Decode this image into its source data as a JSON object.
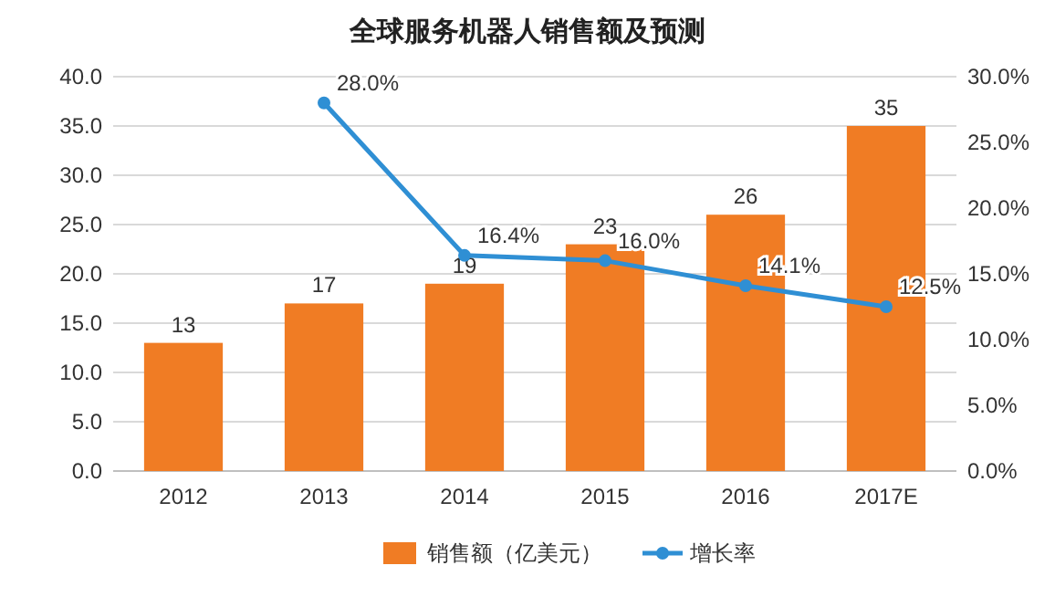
{
  "chart_data": {
    "type": "bar",
    "title": "全球服务机器人销售额及预测",
    "categories": [
      "2012",
      "2013",
      "2014",
      "2015",
      "2016",
      "2017E"
    ],
    "series": [
      {
        "name": "销售额（亿美元）",
        "color": "#f07c24",
        "values": [
          13,
          17,
          19,
          23,
          26,
          35
        ],
        "value_labels": [
          "13",
          "17",
          "19",
          "23",
          "26",
          "35"
        ]
      },
      {
        "name": "增长率",
        "type": "line",
        "axis": "y2",
        "color": "#2f8fd4",
        "marker": "circle",
        "values": [
          null,
          28.0,
          16.4,
          16.0,
          14.1,
          12.5
        ],
        "value_labels": [
          null,
          "28.0%",
          "16.4%",
          "16.0%",
          "14.1%",
          "12.5%"
        ]
      }
    ],
    "ylim": [
      0,
      40
    ],
    "yticks": [
      {
        "value": 0,
        "label": "0.0"
      },
      {
        "value": 5,
        "label": "5.0"
      },
      {
        "value": 10,
        "label": "10.0"
      },
      {
        "value": 15,
        "label": "15.0"
      },
      {
        "value": 20,
        "label": "20.0"
      },
      {
        "value": 25,
        "label": "25.0"
      },
      {
        "value": 30,
        "label": "30.0"
      },
      {
        "value": 35,
        "label": "35.0"
      },
      {
        "value": 40,
        "label": "40.0"
      }
    ],
    "y2lim": [
      0,
      30
    ],
    "y2ticks": [
      {
        "value": 0,
        "label": "0.0%"
      },
      {
        "value": 5,
        "label": "5.0%"
      },
      {
        "value": 10,
        "label": "10.0%"
      },
      {
        "value": 15,
        "label": "15.0%"
      },
      {
        "value": 20,
        "label": "20.0%"
      },
      {
        "value": 25,
        "label": "25.0%"
      },
      {
        "value": 30,
        "label": "30.0%"
      }
    ],
    "grid": "y",
    "legend": "bottom"
  }
}
